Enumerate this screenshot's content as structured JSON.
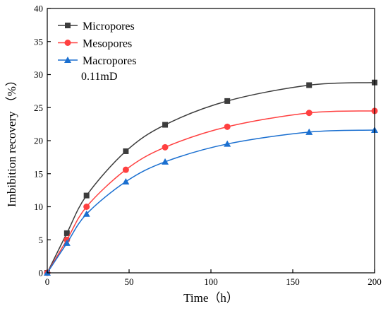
{
  "chart_data": {
    "type": "line",
    "xlabel": "Time（h）",
    "ylabel": "Imbibition recovery （%）",
    "xlim": [
      0,
      200
    ],
    "ylim": [
      0,
      40
    ],
    "xticks": [
      0,
      50,
      100,
      150,
      200
    ],
    "yticks": [
      0,
      5,
      10,
      15,
      20,
      25,
      30,
      35,
      40
    ],
    "grid": false,
    "legend_position": "top-left",
    "annotation": "0.11mD",
    "series": [
      {
        "name": "Micropores",
        "color": "#3c3c3c",
        "marker": "square",
        "x": [
          0,
          12,
          24,
          48,
          72,
          110,
          160,
          200
        ],
        "y": [
          0,
          6.0,
          11.7,
          18.4,
          22.4,
          26.0,
          28.4,
          28.8
        ]
      },
      {
        "name": "Mesopores",
        "color": "#ff4040",
        "marker": "circle",
        "x": [
          0,
          12,
          24,
          48,
          72,
          110,
          160,
          200
        ],
        "y": [
          0,
          5.0,
          10.0,
          15.6,
          19.0,
          22.1,
          24.2,
          24.5
        ]
      },
      {
        "name": "Macropores",
        "color": "#1a6fd0",
        "marker": "triangle",
        "x": [
          0,
          12,
          24,
          48,
          72,
          110,
          160,
          200
        ],
        "y": [
          0,
          4.5,
          8.9,
          13.8,
          16.8,
          19.5,
          21.3,
          21.6
        ]
      }
    ]
  }
}
